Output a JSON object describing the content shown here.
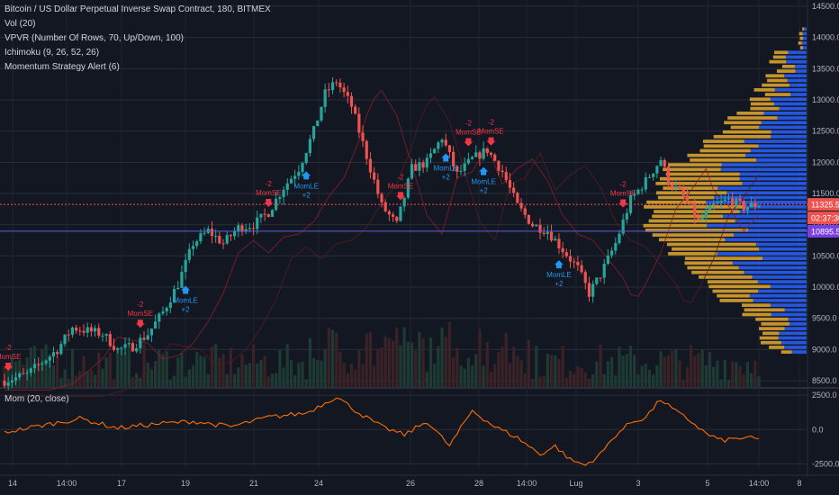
{
  "main": {
    "title": "Bitcoin / US Dollar Perpetual Inverse Swap Contract, 180, BITMEX",
    "indicators": [
      "Vol (20)",
      "VPVR (Number Of Rows, 70, Up/Down, 100)",
      "Ichimoku (9, 26, 52, 26)",
      "Momentum Strategy Alert (6)"
    ]
  },
  "momentum_pane": {
    "title": "Mom (20, close)"
  },
  "price_labels": {
    "last": "11325.5",
    "countdown": "02:37:30",
    "alert": "10895.5"
  },
  "colors": {
    "background": "#131722",
    "up": "#26a69a",
    "down": "#ef5350",
    "vp_up": "#2962ff",
    "vp_down": "#e6a92e",
    "momentum": "#ff6d00",
    "signal_long": "#2196f3",
    "signal_short": "#f23645",
    "alert_label": "#7b3fe4"
  },
  "chart_data": [
    {
      "type": "candlestick",
      "title": "Bitcoin / US Dollar Perpetual Inverse Swap Contract, 180, BITMEX",
      "x_ticks": [
        "14",
        "14:00",
        "17",
        "19",
        "21",
        "24",
        "26",
        "28",
        "14:00",
        "Lug",
        "3",
        "5",
        "14:00",
        "8"
      ],
      "y_ticks": [
        8500,
        9000,
        9500,
        10000,
        10500,
        11000,
        11500,
        12000,
        12500,
        13000,
        13500,
        14000,
        14500
      ],
      "ylim": [
        8400,
        14600
      ],
      "close_path": [
        [
          0,
          8500
        ],
        [
          6,
          8600
        ],
        [
          10,
          8800
        ],
        [
          14,
          9000
        ],
        [
          18,
          9350
        ],
        [
          22,
          9300
        ],
        [
          26,
          9250
        ],
        [
          30,
          9000
        ],
        [
          34,
          9050
        ],
        [
          38,
          9250
        ],
        [
          42,
          9600
        ],
        [
          46,
          10050
        ],
        [
          50,
          10700
        ],
        [
          54,
          10900
        ],
        [
          58,
          10700
        ],
        [
          62,
          10950
        ],
        [
          66,
          11000
        ],
        [
          70,
          11200
        ],
        [
          74,
          11600
        ],
        [
          78,
          11900
        ],
        [
          82,
          12500
        ],
        [
          85,
          13100
        ],
        [
          88,
          13300
        ],
        [
          92,
          12900
        ],
        [
          96,
          12100
        ],
        [
          100,
          11300
        ],
        [
          104,
          11000
        ],
        [
          108,
          11900
        ],
        [
          112,
          12000
        ],
        [
          116,
          12400
        ],
        [
          120,
          11800
        ],
        [
          124,
          12050
        ],
        [
          128,
          12200
        ],
        [
          132,
          11850
        ],
        [
          136,
          11300
        ],
        [
          140,
          11000
        ],
        [
          144,
          10900
        ],
        [
          148,
          10600
        ],
        [
          152,
          10300
        ],
        [
          155,
          9900
        ],
        [
          158,
          10200
        ],
        [
          162,
          10700
        ],
        [
          166,
          11400
        ],
        [
          170,
          11700
        ],
        [
          174,
          12050
        ],
        [
          176,
          11700
        ],
        [
          180,
          11450
        ],
        [
          184,
          11050
        ],
        [
          188,
          11300
        ],
        [
          192,
          11400
        ],
        [
          196,
          11280
        ],
        [
          200,
          11325
        ]
      ],
      "signals": [
        {
          "text": "MomSE",
          "value": "-2",
          "bar": 1,
          "side": "short"
        },
        {
          "text": "MomSE",
          "value": "-2",
          "bar": 36,
          "side": "short"
        },
        {
          "text": "MomLE",
          "value": "+2",
          "bar": 48,
          "side": "long"
        },
        {
          "text": "MomSE",
          "value": "-2",
          "bar": 70,
          "side": "short"
        },
        {
          "text": "MomLE",
          "value": "+2",
          "bar": 80,
          "side": "long"
        },
        {
          "text": "MomSE",
          "value": "-2",
          "bar": 105,
          "side": "short"
        },
        {
          "text": "MomLE",
          "value": "+2",
          "bar": 117,
          "side": "long"
        },
        {
          "text": "MomSE",
          "value": "-2",
          "bar": 123,
          "side": "short"
        },
        {
          "text": "MomLE",
          "value": "+2",
          "bar": 127,
          "side": "long"
        },
        {
          "text": "MomSE",
          "value": "-2",
          "bar": 129,
          "side": "short"
        },
        {
          "text": "MomLE",
          "value": "+2",
          "bar": 147,
          "side": "long"
        },
        {
          "text": "MomSE",
          "value": "-2",
          "bar": 164,
          "side": "short"
        }
      ],
      "volume_profile_peak_price": 11200,
      "horizontal_lines": [
        11325.5,
        10895.5
      ]
    },
    {
      "type": "line",
      "title": "Mom (20, close)",
      "y_ticks": [
        2500.0,
        0.0,
        -2500.0
      ],
      "y_tick_labels": [
        "2500.0",
        "0.0",
        "-2500.0"
      ],
      "ylim": [
        -2800,
        2900
      ],
      "series": [
        {
          "name": "Mom (20, close)",
          "path": [
            [
              0,
              -200
            ],
            [
              10,
              300
            ],
            [
              20,
              800
            ],
            [
              30,
              100
            ],
            [
              40,
              400
            ],
            [
              50,
              600
            ],
            [
              60,
              200
            ],
            [
              70,
              900
            ],
            [
              80,
              1200
            ],
            [
              88,
              2400
            ],
            [
              94,
              1200
            ],
            [
              100,
              200
            ],
            [
              106,
              -400
            ],
            [
              112,
              600
            ],
            [
              118,
              -1200
            ],
            [
              124,
              1400
            ],
            [
              130,
              200
            ],
            [
              136,
              -600
            ],
            [
              142,
              -1800
            ],
            [
              146,
              -1200
            ],
            [
              150,
              -2200
            ],
            [
              154,
              -2600
            ],
            [
              158,
              -1800
            ],
            [
              162,
              -400
            ],
            [
              166,
              500
            ],
            [
              170,
              900
            ],
            [
              174,
              2200
            ],
            [
              178,
              1300
            ],
            [
              182,
              600
            ],
            [
              186,
              -300
            ],
            [
              190,
              -800
            ],
            [
              196,
              -600
            ],
            [
              200,
              -700
            ]
          ]
        }
      ]
    }
  ]
}
